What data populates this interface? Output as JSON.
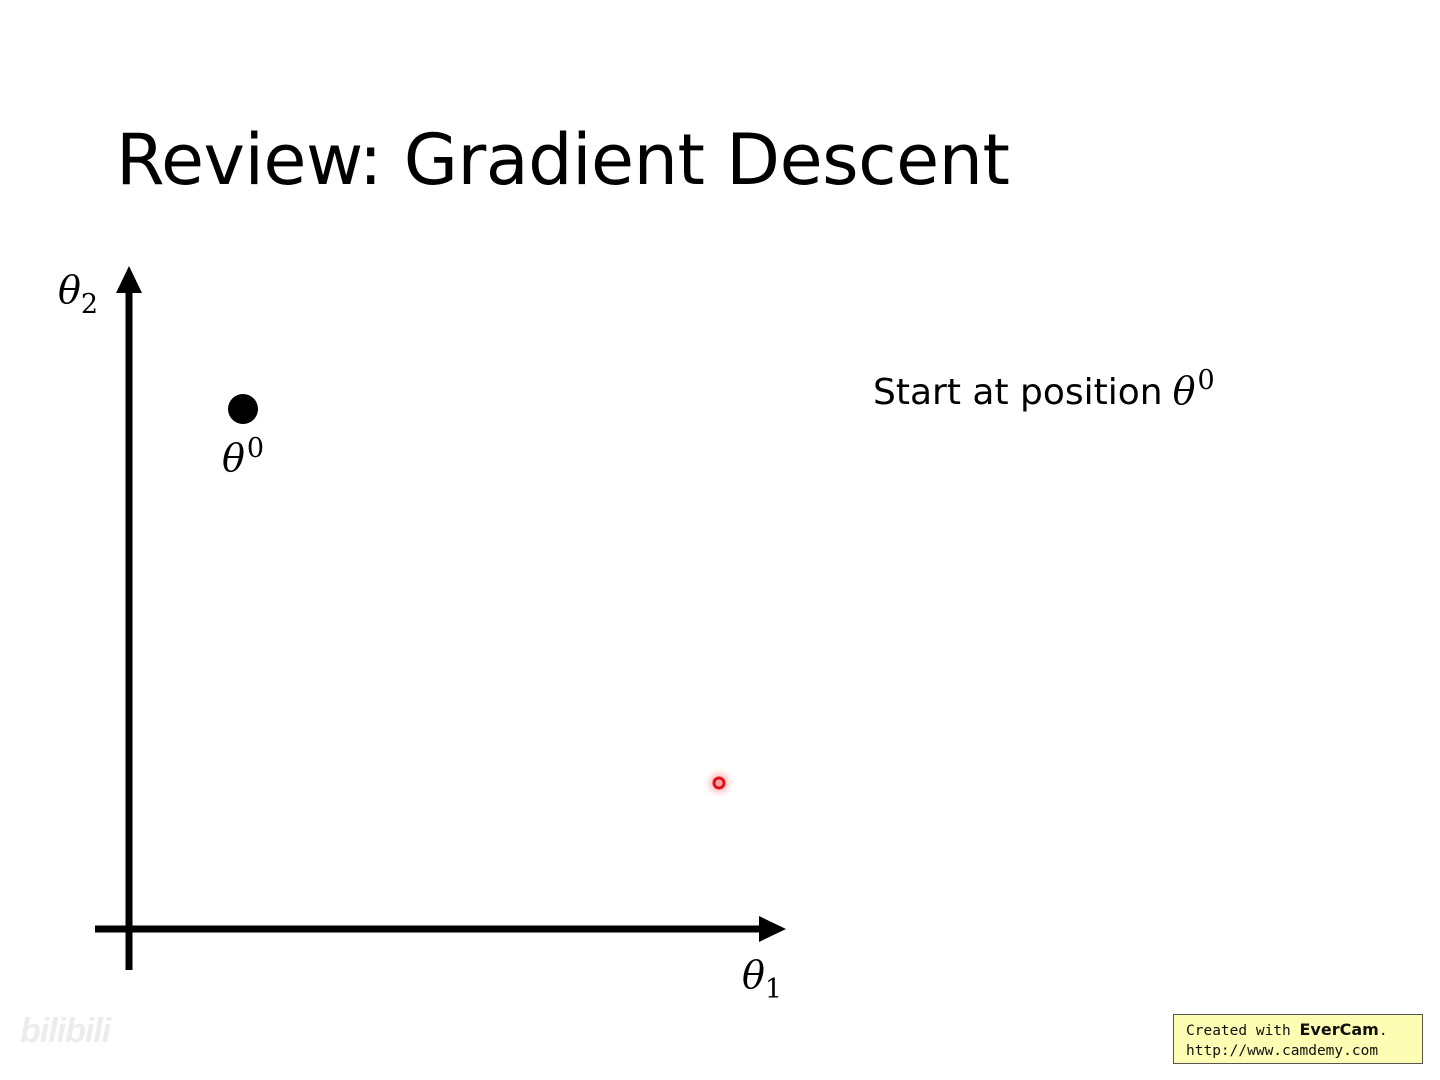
{
  "title": "Review: Gradient Descent",
  "axes": {
    "y_label_base": "θ",
    "y_label_sub": "2",
    "x_label_base": "θ",
    "x_label_sub": "1"
  },
  "point": {
    "label_base": "θ",
    "label_sup": "0"
  },
  "caption": {
    "text": "Start at position",
    "math_base": "θ",
    "math_sup": "0"
  },
  "watermark": "bilibili",
  "badge": {
    "prefix": "Created with ",
    "brand": "EverCam",
    "suffix": ".",
    "url": "http://www.camdemy.com"
  },
  "colors": {
    "axis": "#000000",
    "point": "#000000",
    "cursor": "#e0101a",
    "badge_bg": "#fdfdb3"
  }
}
